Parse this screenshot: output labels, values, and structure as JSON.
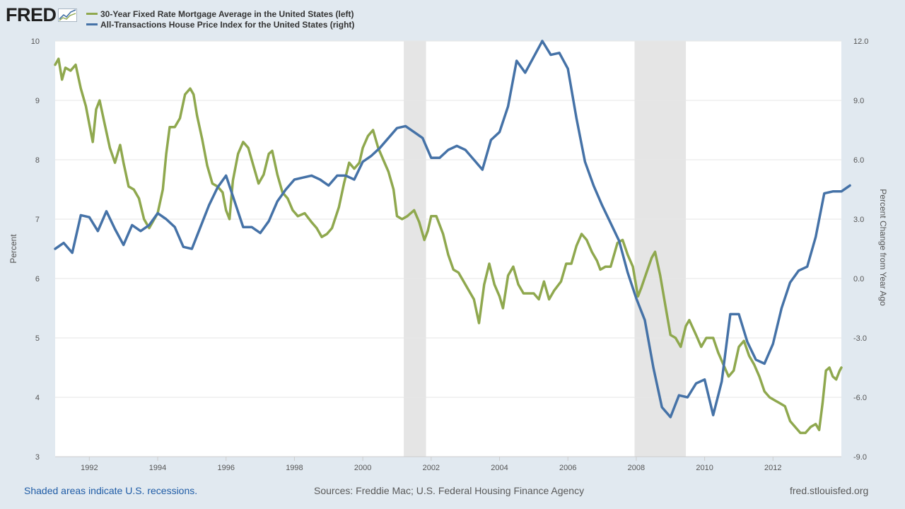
{
  "header": {
    "logo_text": "FRED"
  },
  "colors": {
    "mortgage": "#8fa84e",
    "hpi": "#4572a7",
    "recession": "#e5e5e5",
    "grid": "#e6e6e6",
    "plot_bg": "#ffffff"
  },
  "footer": {
    "note": "Shaded areas indicate U.S. recessions.",
    "sources": "Sources: Freddie Mac; U.S. Federal Housing Finance Agency",
    "site": "fred.stlouisfed.org"
  },
  "chart_data": {
    "type": "line",
    "x_range": [
      1991.0,
      2014.0
    ],
    "x_ticks": [
      1992,
      1994,
      1996,
      1998,
      2000,
      2002,
      2004,
      2006,
      2008,
      2010,
      2012
    ],
    "x_tick_labels": [
      "1992",
      "1994",
      "1996",
      "1998",
      "2000",
      "2002",
      "2004",
      "2006",
      "2008",
      "2010",
      "2012"
    ],
    "y_left": {
      "label": "Percent",
      "range": [
        3,
        10
      ],
      "ticks": [
        3,
        4,
        5,
        6,
        7,
        8,
        9,
        10
      ],
      "tick_labels": [
        "3",
        "4",
        "5",
        "6",
        "7",
        "8",
        "9",
        "10"
      ]
    },
    "y_right": {
      "label": "Percent Change from Year Ago",
      "range": [
        -9,
        12
      ],
      "ticks": [
        -9,
        -6,
        -3,
        0,
        3,
        6,
        9,
        12
      ],
      "tick_labels": [
        "-9.0",
        "-6.0",
        "-3.0",
        "0.0",
        "3.0",
        "6.0",
        "9.0",
        "12.0"
      ]
    },
    "grid": "horizontal",
    "recessions": [
      [
        2001.2,
        2001.85
      ],
      [
        2007.95,
        2009.45
      ]
    ],
    "series": [
      {
        "name": "30-Year Fixed Rate Mortgage Average in the United States (left)",
        "axis": "left",
        "points": [
          [
            1991.0,
            9.6
          ],
          [
            1991.1,
            9.7
          ],
          [
            1991.2,
            9.35
          ],
          [
            1991.3,
            9.55
          ],
          [
            1991.45,
            9.5
          ],
          [
            1991.6,
            9.6
          ],
          [
            1991.75,
            9.2
          ],
          [
            1991.9,
            8.9
          ],
          [
            1992.0,
            8.6
          ],
          [
            1992.1,
            8.3
          ],
          [
            1992.2,
            8.85
          ],
          [
            1992.3,
            9.0
          ],
          [
            1992.45,
            8.6
          ],
          [
            1992.6,
            8.2
          ],
          [
            1992.75,
            7.95
          ],
          [
            1992.9,
            8.25
          ],
          [
            1993.0,
            7.95
          ],
          [
            1993.15,
            7.55
          ],
          [
            1993.3,
            7.5
          ],
          [
            1993.45,
            7.35
          ],
          [
            1993.6,
            7.0
          ],
          [
            1993.75,
            6.85
          ],
          [
            1993.9,
            7.0
          ],
          [
            1994.0,
            7.1
          ],
          [
            1994.15,
            7.5
          ],
          [
            1994.25,
            8.1
          ],
          [
            1994.35,
            8.55
          ],
          [
            1994.5,
            8.55
          ],
          [
            1994.65,
            8.7
          ],
          [
            1994.8,
            9.1
          ],
          [
            1994.95,
            9.2
          ],
          [
            1995.05,
            9.1
          ],
          [
            1995.15,
            8.75
          ],
          [
            1995.3,
            8.35
          ],
          [
            1995.45,
            7.9
          ],
          [
            1995.6,
            7.6
          ],
          [
            1995.75,
            7.55
          ],
          [
            1995.9,
            7.45
          ],
          [
            1996.0,
            7.15
          ],
          [
            1996.1,
            7.0
          ],
          [
            1996.2,
            7.65
          ],
          [
            1996.35,
            8.1
          ],
          [
            1996.5,
            8.3
          ],
          [
            1996.65,
            8.2
          ],
          [
            1996.8,
            7.9
          ],
          [
            1996.95,
            7.6
          ],
          [
            1997.1,
            7.75
          ],
          [
            1997.25,
            8.1
          ],
          [
            1997.35,
            8.15
          ],
          [
            1997.5,
            7.75
          ],
          [
            1997.65,
            7.45
          ],
          [
            1997.8,
            7.35
          ],
          [
            1997.95,
            7.15
          ],
          [
            1998.1,
            7.05
          ],
          [
            1998.3,
            7.1
          ],
          [
            1998.5,
            6.95
          ],
          [
            1998.65,
            6.85
          ],
          [
            1998.8,
            6.7
          ],
          [
            1998.95,
            6.75
          ],
          [
            1999.1,
            6.85
          ],
          [
            1999.3,
            7.2
          ],
          [
            1999.45,
            7.6
          ],
          [
            1999.6,
            7.95
          ],
          [
            1999.75,
            7.85
          ],
          [
            1999.9,
            7.95
          ],
          [
            2000.0,
            8.2
          ],
          [
            2000.15,
            8.4
          ],
          [
            2000.3,
            8.5
          ],
          [
            2000.45,
            8.2
          ],
          [
            2000.6,
            8.0
          ],
          [
            2000.75,
            7.8
          ],
          [
            2000.9,
            7.5
          ],
          [
            2001.0,
            7.05
          ],
          [
            2001.15,
            7.0
          ],
          [
            2001.3,
            7.05
          ],
          [
            2001.5,
            7.15
          ],
          [
            2001.65,
            6.95
          ],
          [
            2001.8,
            6.65
          ],
          [
            2001.9,
            6.8
          ],
          [
            2002.0,
            7.05
          ],
          [
            2002.15,
            7.05
          ],
          [
            2002.35,
            6.75
          ],
          [
            2002.5,
            6.4
          ],
          [
            2002.65,
            6.15
          ],
          [
            2002.8,
            6.1
          ],
          [
            2002.95,
            5.95
          ],
          [
            2003.1,
            5.8
          ],
          [
            2003.25,
            5.65
          ],
          [
            2003.4,
            5.25
          ],
          [
            2003.55,
            5.9
          ],
          [
            2003.7,
            6.25
          ],
          [
            2003.85,
            5.9
          ],
          [
            2004.0,
            5.7
          ],
          [
            2004.1,
            5.5
          ],
          [
            2004.25,
            6.05
          ],
          [
            2004.4,
            6.2
          ],
          [
            2004.55,
            5.9
          ],
          [
            2004.7,
            5.75
          ],
          [
            2004.85,
            5.75
          ],
          [
            2005.0,
            5.75
          ],
          [
            2005.15,
            5.65
          ],
          [
            2005.3,
            5.95
          ],
          [
            2005.45,
            5.65
          ],
          [
            2005.6,
            5.8
          ],
          [
            2005.8,
            5.95
          ],
          [
            2005.95,
            6.25
          ],
          [
            2006.1,
            6.25
          ],
          [
            2006.25,
            6.55
          ],
          [
            2006.4,
            6.75
          ],
          [
            2006.55,
            6.65
          ],
          [
            2006.7,
            6.45
          ],
          [
            2006.85,
            6.3
          ],
          [
            2006.95,
            6.15
          ],
          [
            2007.1,
            6.2
          ],
          [
            2007.25,
            6.2
          ],
          [
            2007.45,
            6.6
          ],
          [
            2007.6,
            6.65
          ],
          [
            2007.75,
            6.4
          ],
          [
            2007.9,
            6.2
          ],
          [
            2008.05,
            5.7
          ],
          [
            2008.15,
            5.85
          ],
          [
            2008.3,
            6.1
          ],
          [
            2008.45,
            6.35
          ],
          [
            2008.55,
            6.45
          ],
          [
            2008.7,
            6.05
          ],
          [
            2008.85,
            5.55
          ],
          [
            2009.0,
            5.05
          ],
          [
            2009.15,
            5.0
          ],
          [
            2009.3,
            4.85
          ],
          [
            2009.45,
            5.2
          ],
          [
            2009.55,
            5.3
          ],
          [
            2009.75,
            5.05
          ],
          [
            2009.9,
            4.85
          ],
          [
            2010.05,
            5.0
          ],
          [
            2010.25,
            5.0
          ],
          [
            2010.4,
            4.75
          ],
          [
            2010.55,
            4.55
          ],
          [
            2010.7,
            4.35
          ],
          [
            2010.85,
            4.45
          ],
          [
            2011.0,
            4.85
          ],
          [
            2011.15,
            4.95
          ],
          [
            2011.3,
            4.7
          ],
          [
            2011.45,
            4.55
          ],
          [
            2011.6,
            4.35
          ],
          [
            2011.75,
            4.1
          ],
          [
            2011.9,
            4.0
          ],
          [
            2012.05,
            3.95
          ],
          [
            2012.2,
            3.9
          ],
          [
            2012.35,
            3.85
          ],
          [
            2012.5,
            3.6
          ],
          [
            2012.65,
            3.5
          ],
          [
            2012.8,
            3.4
          ],
          [
            2012.95,
            3.4
          ],
          [
            2013.1,
            3.5
          ],
          [
            2013.25,
            3.55
          ],
          [
            2013.35,
            3.45
          ],
          [
            2013.45,
            3.9
          ],
          [
            2013.55,
            4.45
          ],
          [
            2013.65,
            4.5
          ],
          [
            2013.75,
            4.35
          ],
          [
            2013.85,
            4.3
          ],
          [
            2013.95,
            4.45
          ],
          [
            2014.0,
            4.5
          ]
        ]
      },
      {
        "name": "All-Transactions House Price Index for the United States (right)",
        "axis": "right",
        "points": [
          [
            1991.0,
            1.5
          ],
          [
            1991.25,
            1.8
          ],
          [
            1991.5,
            1.3
          ],
          [
            1991.75,
            3.2
          ],
          [
            1992.0,
            3.1
          ],
          [
            1992.25,
            2.4
          ],
          [
            1992.5,
            3.4
          ],
          [
            1992.75,
            2.5
          ],
          [
            1993.0,
            1.7
          ],
          [
            1993.25,
            2.7
          ],
          [
            1993.5,
            2.4
          ],
          [
            1993.75,
            2.7
          ],
          [
            1994.0,
            3.3
          ],
          [
            1994.25,
            3.0
          ],
          [
            1994.5,
            2.6
          ],
          [
            1994.75,
            1.6
          ],
          [
            1995.0,
            1.5
          ],
          [
            1995.25,
            2.6
          ],
          [
            1995.5,
            3.7
          ],
          [
            1995.75,
            4.6
          ],
          [
            1996.0,
            5.2
          ],
          [
            1996.25,
            3.9
          ],
          [
            1996.5,
            2.6
          ],
          [
            1996.75,
            2.6
          ],
          [
            1997.0,
            2.3
          ],
          [
            1997.25,
            2.9
          ],
          [
            1997.5,
            3.9
          ],
          [
            1997.75,
            4.5
          ],
          [
            1998.0,
            5.0
          ],
          [
            1998.25,
            5.1
          ],
          [
            1998.5,
            5.2
          ],
          [
            1998.75,
            5.0
          ],
          [
            1999.0,
            4.7
          ],
          [
            1999.25,
            5.2
          ],
          [
            1999.5,
            5.2
          ],
          [
            1999.75,
            5.0
          ],
          [
            2000.0,
            5.9
          ],
          [
            2000.25,
            6.2
          ],
          [
            2000.5,
            6.6
          ],
          [
            2000.75,
            7.1
          ],
          [
            2001.0,
            7.6
          ],
          [
            2001.25,
            7.7
          ],
          [
            2001.5,
            7.4
          ],
          [
            2001.75,
            7.1
          ],
          [
            2002.0,
            6.1
          ],
          [
            2002.25,
            6.1
          ],
          [
            2002.5,
            6.5
          ],
          [
            2002.75,
            6.7
          ],
          [
            2003.0,
            6.5
          ],
          [
            2003.25,
            6.0
          ],
          [
            2003.5,
            5.5
          ],
          [
            2003.75,
            7.0
          ],
          [
            2004.0,
            7.4
          ],
          [
            2004.25,
            8.7
          ],
          [
            2004.5,
            11.0
          ],
          [
            2004.75,
            10.4
          ],
          [
            2005.0,
            11.2
          ],
          [
            2005.25,
            12.0
          ],
          [
            2005.5,
            11.3
          ],
          [
            2005.75,
            11.4
          ],
          [
            2006.0,
            10.6
          ],
          [
            2006.25,
            8.1
          ],
          [
            2006.5,
            5.9
          ],
          [
            2006.75,
            4.7
          ],
          [
            2007.0,
            3.7
          ],
          [
            2007.25,
            2.8
          ],
          [
            2007.5,
            1.9
          ],
          [
            2007.75,
            0.3
          ],
          [
            2008.0,
            -1.0
          ],
          [
            2008.25,
            -2.1
          ],
          [
            2008.5,
            -4.5
          ],
          [
            2008.75,
            -6.5
          ],
          [
            2009.0,
            -7.0
          ],
          [
            2009.25,
            -5.9
          ],
          [
            2009.5,
            -6.0
          ],
          [
            2009.75,
            -5.3
          ],
          [
            2010.0,
            -5.1
          ],
          [
            2010.25,
            -6.9
          ],
          [
            2010.5,
            -5.2
          ],
          [
            2010.75,
            -1.8
          ],
          [
            2011.0,
            -1.8
          ],
          [
            2011.25,
            -3.2
          ],
          [
            2011.5,
            -4.1
          ],
          [
            2011.75,
            -4.3
          ],
          [
            2012.0,
            -3.3
          ],
          [
            2012.25,
            -1.5
          ],
          [
            2012.5,
            -0.2
          ],
          [
            2012.75,
            0.4
          ],
          [
            2013.0,
            0.6
          ],
          [
            2013.25,
            2.1
          ],
          [
            2013.5,
            4.3
          ],
          [
            2013.75,
            4.4
          ],
          [
            2014.0,
            4.4
          ],
          [
            2014.25,
            4.7
          ]
        ]
      }
    ]
  }
}
